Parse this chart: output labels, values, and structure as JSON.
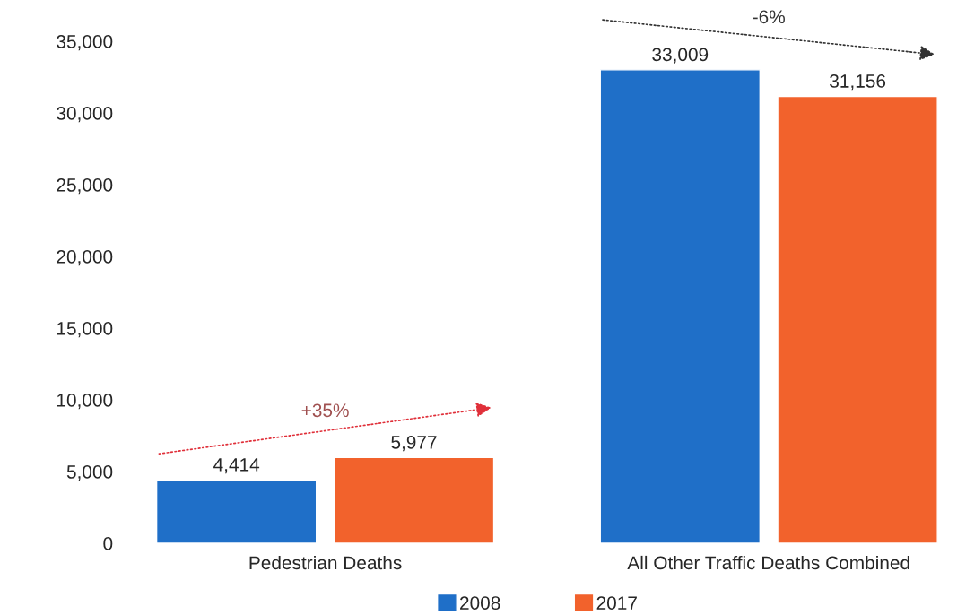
{
  "chart_data": {
    "type": "bar",
    "categories": [
      "Pedestrian Deaths",
      "All Other Traffic Deaths Combined"
    ],
    "series": [
      {
        "name": "2008",
        "color": "#1f6fc8",
        "values": [
          4414,
          33009
        ]
      },
      {
        "name": "2017",
        "color": "#f2622c",
        "values": [
          5977,
          31156
        ]
      }
    ],
    "ylim": [
      0,
      35000
    ],
    "yticks": [
      0,
      {
        "value": 5000,
        "label": "5,000"
      },
      {
        "value": 10000,
        "label": "10,000"
      },
      {
        "value": 15000,
        "label": "15,000"
      },
      {
        "value": 20000,
        "label": "20,000"
      },
      {
        "value": 25000,
        "label": "25,000"
      },
      {
        "value": 30000,
        "label": "30,000"
      },
      {
        "value": 35000,
        "label": "35,000"
      }
    ],
    "value_labels": [
      [
        "4,414",
        "33,009"
      ],
      [
        "5,977",
        "31,156"
      ]
    ],
    "annotations": [
      "+35%",
      "-6%"
    ],
    "grid": false,
    "legend": "bottom"
  }
}
